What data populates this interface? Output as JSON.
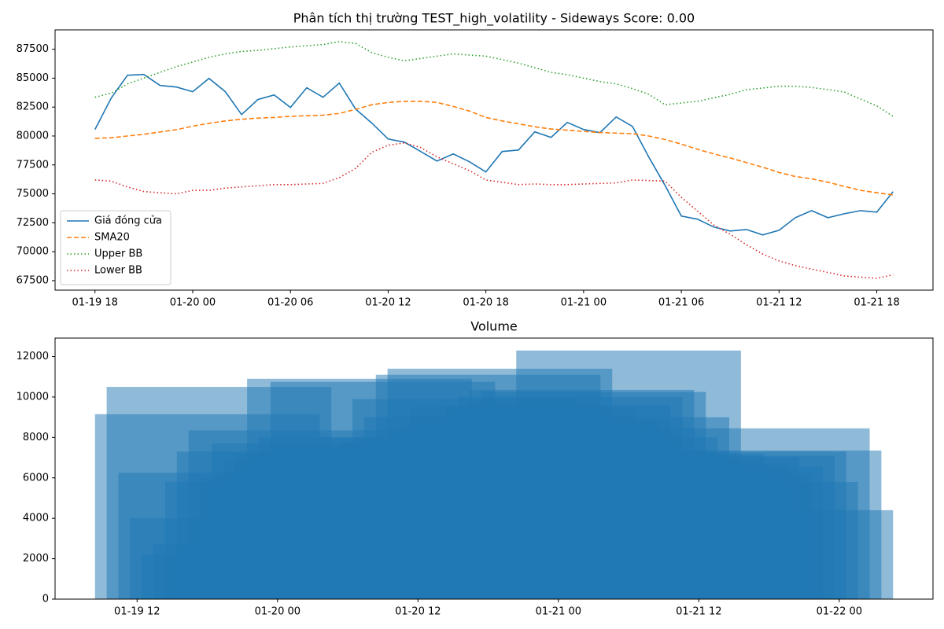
{
  "chart_data": [
    {
      "type": "line",
      "title": "Phân tích thị trường TEST_high_volatility - Sideways Score: 0.00",
      "x": [
        "01-19 18",
        "01-19 19",
        "01-19 20",
        "01-19 21",
        "01-19 22",
        "01-19 23",
        "01-20 00",
        "01-20 01",
        "01-20 02",
        "01-20 03",
        "01-20 04",
        "01-20 05",
        "01-20 06",
        "01-20 07",
        "01-20 08",
        "01-20 09",
        "01-20 10",
        "01-20 11",
        "01-20 12",
        "01-20 13",
        "01-20 14",
        "01-20 15",
        "01-20 16",
        "01-20 17",
        "01-20 18",
        "01-20 19",
        "01-20 20",
        "01-20 21",
        "01-20 22",
        "01-20 23",
        "01-21 00",
        "01-21 01",
        "01-21 02",
        "01-21 03",
        "01-21 04",
        "01-21 05",
        "01-21 06",
        "01-21 07",
        "01-21 08",
        "01-21 09",
        "01-21 10",
        "01-21 11",
        "01-21 12",
        "01-21 13",
        "01-21 14",
        "01-21 15",
        "01-21 16",
        "01-21 17",
        "01-21 18",
        "01-21 19"
      ],
      "series": [
        {
          "name": "Giá đóng cửa",
          "color": "#1f77b4",
          "linestyle": "solid",
          "values": [
            80560,
            83280,
            85250,
            85320,
            84370,
            84230,
            83830,
            84980,
            83830,
            81850,
            83150,
            83550,
            82470,
            84170,
            83350,
            84570,
            82330,
            81110,
            79740,
            79470,
            78660,
            77840,
            78450,
            77770,
            76890,
            78660,
            78790,
            80360,
            79880,
            81170,
            80560,
            80290,
            81650,
            80830,
            78180,
            75730,
            73080,
            72810,
            72130,
            71790,
            71920,
            71450,
            71850,
            72940,
            73550,
            72940,
            73280,
            73550,
            73420,
            75190
          ]
        },
        {
          "name": "SMA20",
          "color": "#ff7f0e",
          "linestyle": "dashed",
          "values": [
            79800,
            79850,
            80000,
            80150,
            80350,
            80550,
            80850,
            81100,
            81300,
            81450,
            81550,
            81600,
            81700,
            81750,
            81800,
            81950,
            82300,
            82700,
            82900,
            83000,
            83000,
            82900,
            82550,
            82150,
            81600,
            81300,
            81050,
            80800,
            80600,
            80500,
            80400,
            80300,
            80250,
            80200,
            80000,
            79700,
            79300,
            78850,
            78450,
            78100,
            77700,
            77300,
            76850,
            76500,
            76300,
            76000,
            75650,
            75300,
            75100,
            74900
          ]
        },
        {
          "name": "Upper BB",
          "color": "#2ca02c",
          "linestyle": "dotted",
          "values": [
            83350,
            83700,
            84500,
            85000,
            85500,
            86000,
            86400,
            86800,
            87100,
            87300,
            87400,
            87550,
            87700,
            87800,
            87900,
            88150,
            88000,
            87200,
            86800,
            86500,
            86700,
            86900,
            87100,
            87000,
            86900,
            86600,
            86300,
            85900,
            85500,
            85300,
            85000,
            84700,
            84500,
            84100,
            83600,
            82700,
            82850,
            83000,
            83300,
            83600,
            84000,
            84150,
            84300,
            84300,
            84200,
            84000,
            83800,
            83200,
            82600,
            81700
          ]
        },
        {
          "name": "Lower BB",
          "color": "#d62728",
          "linestyle": "dotted",
          "values": [
            76200,
            76100,
            75600,
            75200,
            75100,
            75000,
            75300,
            75300,
            75500,
            75600,
            75700,
            75800,
            75800,
            75850,
            75900,
            76400,
            77200,
            78600,
            79200,
            79400,
            79000,
            78200,
            77600,
            77000,
            76200,
            76000,
            75800,
            75850,
            75800,
            75800,
            75850,
            75900,
            75950,
            76200,
            76150,
            76100,
            74700,
            73500,
            72300,
            71500,
            70600,
            69800,
            69200,
            68800,
            68500,
            68200,
            67900,
            67800,
            67700,
            68000
          ]
        }
      ],
      "ylim": [
        66678,
        89172
      ],
      "yticks": [
        67500,
        70000,
        72500,
        75000,
        77500,
        80000,
        82500,
        85000,
        87500
      ],
      "xticks": [
        "01-19 18",
        "01-20 00",
        "01-20 06",
        "01-20 12",
        "01-20 18",
        "01-21 00",
        "01-21 06",
        "01-21 12",
        "01-21 18"
      ],
      "legend": "lower left"
    },
    {
      "type": "bar",
      "title": "Volume",
      "color": "#1f77b4",
      "x": [
        "01-19 18",
        "01-19 19",
        "01-19 20",
        "01-19 21",
        "01-19 22",
        "01-19 23",
        "01-20 00",
        "01-20 01",
        "01-20 02",
        "01-20 03",
        "01-20 04",
        "01-20 05",
        "01-20 06",
        "01-20 07",
        "01-20 08",
        "01-20 09",
        "01-20 10",
        "01-20 11",
        "01-20 12",
        "01-20 13",
        "01-20 14",
        "01-20 15",
        "01-20 16",
        "01-20 17",
        "01-20 18",
        "01-20 19",
        "01-20 20",
        "01-20 21",
        "01-20 22",
        "01-20 23",
        "01-21 00",
        "01-21 01",
        "01-21 02",
        "01-21 03",
        "01-21 04",
        "01-21 05",
        "01-21 06",
        "01-21 07",
        "01-21 08",
        "01-21 09",
        "01-21 10",
        "01-21 11",
        "01-21 12",
        "01-21 13",
        "01-21 14",
        "01-21 15",
        "01-21 16",
        "01-21 17",
        "01-21 18",
        "01-21 19"
      ],
      "values": [
        9150,
        10500,
        6250,
        4000,
        2200,
        2700,
        5800,
        7300,
        8350,
        6000,
        7700,
        6800,
        7200,
        10900,
        8000,
        10750,
        6500,
        7500,
        5000,
        8000,
        6900,
        7800,
        9900,
        9000,
        11100,
        11400,
        8500,
        9500,
        7000,
        8800,
        9600,
        10000,
        10350,
        10250,
        8000,
        9000,
        12300,
        6000,
        7200,
        5500,
        6700,
        7000,
        6200,
        6550,
        7100,
        7300,
        5800,
        8450,
        7350,
        4400
      ],
      "ylim": [
        0,
        12915
      ],
      "yticks": [
        0,
        2000,
        4000,
        6000,
        8000,
        10000,
        12000
      ],
      "xticks": [
        "01-19 12",
        "01-20 00",
        "01-20 12",
        "01-21 00",
        "01-21 12",
        "01-22 00"
      ]
    }
  ]
}
